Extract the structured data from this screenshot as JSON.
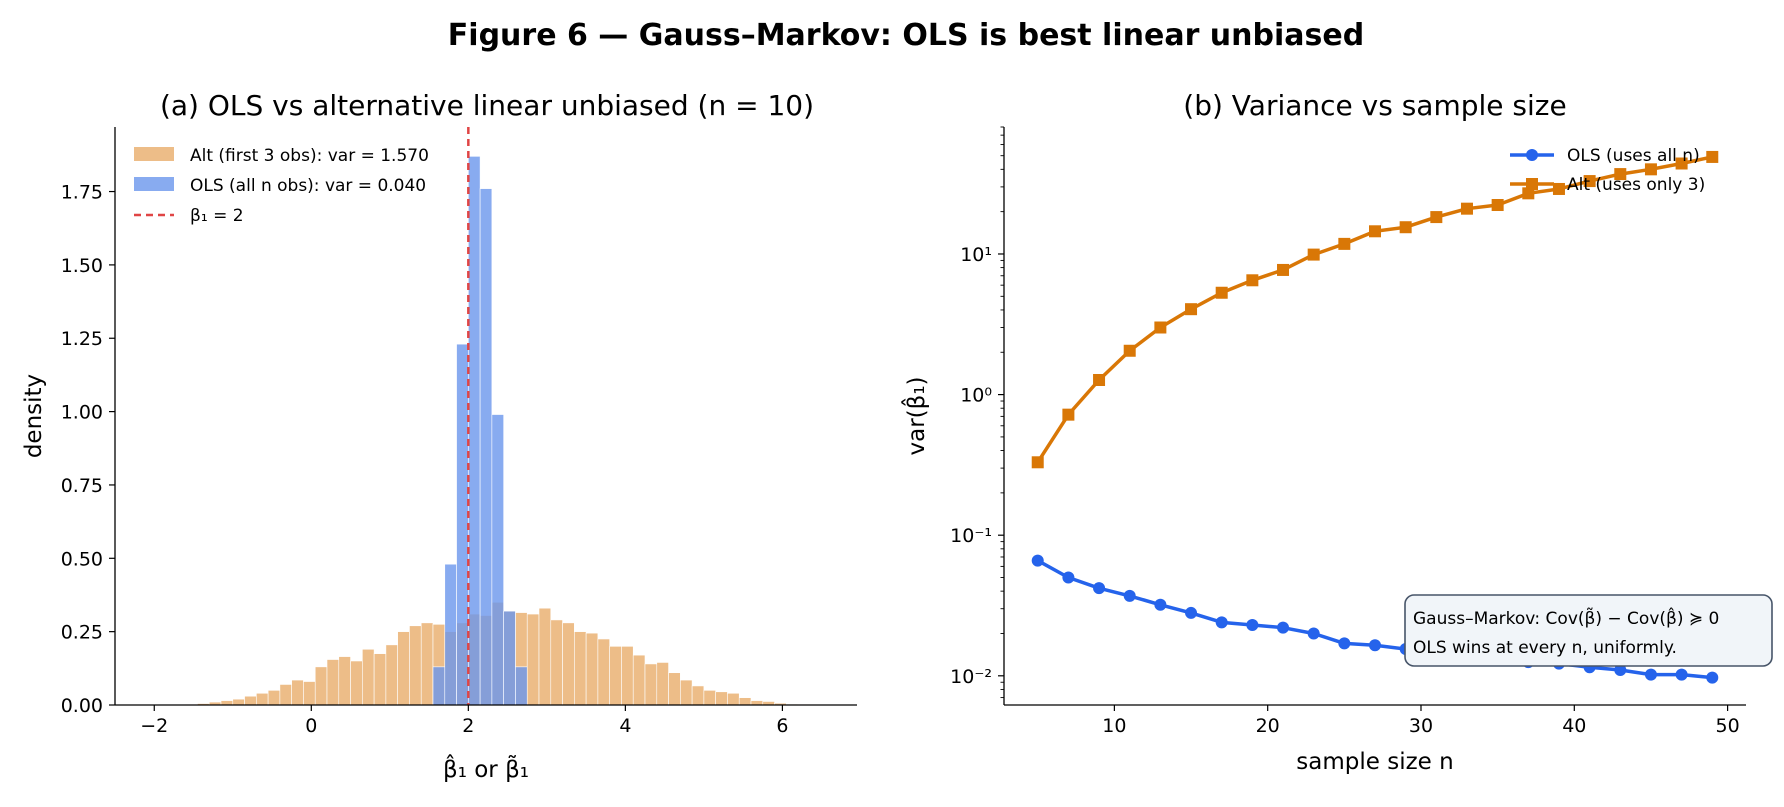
{
  "figure": {
    "title": "Figure 6 — Gauss–Markov: OLS is best linear unbiased"
  },
  "chart_data": [
    {
      "type": "histogram",
      "title": "(a) OLS vs alternative linear unbiased (n = 10)",
      "xlabel": "β̂₁ or β̃₁",
      "ylabel": "density",
      "xlim": [
        -2.5,
        6.95
      ],
      "ylim": [
        0,
        1.97
      ],
      "xticks": [
        -2,
        0,
        2,
        4,
        6
      ],
      "xtick_labels": [
        "−2",
        "0",
        "2",
        "4",
        "6"
      ],
      "yticks": [
        0,
        0.25,
        0.5,
        0.75,
        1.0,
        1.25,
        1.5,
        1.75
      ],
      "ytick_labels": [
        "0.00",
        "0.25",
        "0.50",
        "0.75",
        "1.00",
        "1.25",
        "1.50",
        "1.75"
      ],
      "grid": false,
      "legend_position": "top-left",
      "reference_line": {
        "x": 2,
        "label": "β₁ = 2",
        "color": "#e04545",
        "style": "dashed"
      },
      "series": [
        {
          "name": "Alt (first 3 obs): var = 1.570",
          "color": "#e8ad6a",
          "bin_start": -1.6,
          "bin_width": 0.15,
          "values": [
            0.002,
            0.005,
            0.01,
            0.015,
            0.02,
            0.03,
            0.04,
            0.05,
            0.07,
            0.085,
            0.08,
            0.13,
            0.155,
            0.165,
            0.15,
            0.19,
            0.175,
            0.205,
            0.25,
            0.27,
            0.28,
            0.275,
            0.25,
            0.28,
            0.31,
            0.305,
            0.35,
            0.32,
            0.315,
            0.31,
            0.33,
            0.29,
            0.28,
            0.25,
            0.245,
            0.225,
            0.2,
            0.2,
            0.17,
            0.14,
            0.145,
            0.11,
            0.085,
            0.065,
            0.05,
            0.045,
            0.04,
            0.025,
            0.015,
            0.012,
            0.006,
            0.003,
            0.002
          ]
        },
        {
          "name": "OLS (all n obs): var = 0.040",
          "color": "#6a96ec",
          "bin_start": 1.4,
          "bin_width": 0.15,
          "values": [
            0.0,
            0.13,
            0.48,
            1.23,
            1.87,
            1.76,
            0.99,
            0.32,
            0.13
          ]
        }
      ]
    },
    {
      "type": "line",
      "title": "(b) Variance vs sample size",
      "xlabel": "sample size n",
      "ylabel": "var(β̂₁)",
      "xscale": "linear",
      "yscale": "log",
      "xlim": [
        2.8,
        51.2
      ],
      "ylim": [
        0.0062,
        80
      ],
      "xticks": [
        10,
        20,
        30,
        40,
        50
      ],
      "xtick_labels": [
        "10",
        "20",
        "30",
        "40",
        "50"
      ],
      "yticks": [
        0.01,
        0.1,
        1,
        10
      ],
      "ytick_labels": [
        "10⁻²",
        "10⁻¹",
        "10⁰",
        "10¹"
      ],
      "grid": false,
      "legend_position": "top-right",
      "x": [
        5,
        7,
        9,
        11,
        13,
        15,
        17,
        19,
        21,
        23,
        25,
        27,
        29,
        31,
        33,
        35,
        37,
        39,
        41,
        43,
        45,
        47,
        49
      ],
      "series": [
        {
          "name": "OLS (uses all n)",
          "color": "#2563eb",
          "marker": "circle",
          "values": [
            0.066,
            0.05,
            0.042,
            0.037,
            0.032,
            0.028,
            0.024,
            0.023,
            0.022,
            0.02,
            0.017,
            0.0165,
            0.0155,
            0.014,
            0.0135,
            0.013,
            0.0125,
            0.0122,
            0.0115,
            0.011,
            0.0102,
            0.0102,
            0.0097
          ]
        },
        {
          "name": "Alt (uses only 3)",
          "color": "#d97706",
          "marker": "square",
          "values": [
            0.33,
            0.72,
            1.27,
            2.05,
            3.0,
            4.05,
            5.3,
            6.5,
            7.7,
            9.9,
            11.8,
            14.5,
            15.5,
            18.3,
            21.0,
            22.3,
            27.0,
            29.0,
            33.0,
            37.0,
            40.0,
            44.0,
            49.0
          ]
        }
      ],
      "annotation": [
        "Gauss–Markov: Cov(β̃) − Cov(β̂) ≽ 0",
        "OLS wins at every n, uniformly."
      ]
    }
  ]
}
